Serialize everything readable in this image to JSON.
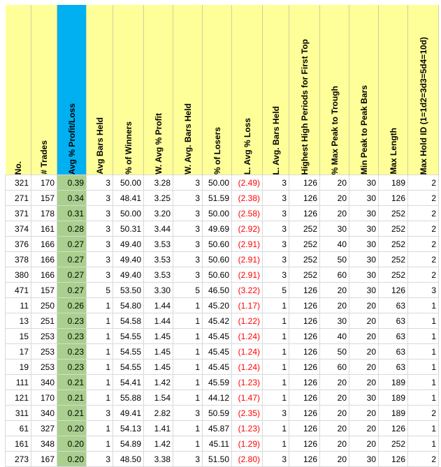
{
  "headers": [
    "No.",
    "# Trades",
    "Avg % Profit/Loss",
    "Avg Bars Held",
    "% of Winners",
    "W. Avg % Profit",
    "W. Avg. Bars Held",
    "% of Losers",
    "L. Avg % Loss",
    "L. Avg. Bars Held",
    "Highest High Periods for First Top",
    "% Max Peak to Trough",
    "Min Peak to Peak Bars",
    "Max Length",
    "Max Hold ID (1=1d2=3d3=5d4=10d)"
  ],
  "rows": [
    [
      "321",
      "170",
      "0.39",
      "3",
      "50.00",
      "3.28",
      "3",
      "50.00",
      "(2.49)",
      "3",
      "126",
      "20",
      "30",
      "189",
      "2"
    ],
    [
      "271",
      "157",
      "0.34",
      "3",
      "48.41",
      "3.25",
      "3",
      "51.59",
      "(2.38)",
      "3",
      "126",
      "20",
      "30",
      "126",
      "2"
    ],
    [
      "371",
      "178",
      "0.31",
      "3",
      "50.00",
      "3.20",
      "3",
      "50.00",
      "(2.58)",
      "3",
      "126",
      "20",
      "30",
      "252",
      "2"
    ],
    [
      "374",
      "161",
      "0.28",
      "3",
      "50.31",
      "3.44",
      "3",
      "49.69",
      "(2.92)",
      "3",
      "252",
      "30",
      "30",
      "252",
      "2"
    ],
    [
      "376",
      "166",
      "0.27",
      "3",
      "49.40",
      "3.53",
      "3",
      "50.60",
      "(2.91)",
      "3",
      "252",
      "40",
      "30",
      "252",
      "2"
    ],
    [
      "378",
      "166",
      "0.27",
      "3",
      "49.40",
      "3.53",
      "3",
      "50.60",
      "(2.91)",
      "3",
      "252",
      "50",
      "30",
      "252",
      "2"
    ],
    [
      "380",
      "166",
      "0.27",
      "3",
      "49.40",
      "3.53",
      "3",
      "50.60",
      "(2.91)",
      "3",
      "252",
      "60",
      "30",
      "252",
      "2"
    ],
    [
      "471",
      "157",
      "0.27",
      "5",
      "53.50",
      "3.30",
      "5",
      "46.50",
      "(3.22)",
      "5",
      "126",
      "20",
      "30",
      "126",
      "3"
    ],
    [
      "11",
      "250",
      "0.26",
      "1",
      "54.80",
      "1.44",
      "1",
      "45.20",
      "(1.17)",
      "1",
      "126",
      "20",
      "20",
      "63",
      "1"
    ],
    [
      "13",
      "251",
      "0.23",
      "1",
      "54.58",
      "1.44",
      "1",
      "45.42",
      "(1.22)",
      "1",
      "126",
      "30",
      "20",
      "63",
      "1"
    ],
    [
      "15",
      "253",
      "0.23",
      "1",
      "54.55",
      "1.45",
      "1",
      "45.45",
      "(1.24)",
      "1",
      "126",
      "40",
      "20",
      "63",
      "1"
    ],
    [
      "17",
      "253",
      "0.23",
      "1",
      "54.55",
      "1.45",
      "1",
      "45.45",
      "(1.24)",
      "1",
      "126",
      "50",
      "20",
      "63",
      "1"
    ],
    [
      "19",
      "253",
      "0.23",
      "1",
      "54.55",
      "1.45",
      "1",
      "45.45",
      "(1.24)",
      "1",
      "126",
      "60",
      "20",
      "63",
      "1"
    ],
    [
      "111",
      "340",
      "0.21",
      "1",
      "54.41",
      "1.42",
      "1",
      "45.59",
      "(1.23)",
      "1",
      "126",
      "20",
      "20",
      "189",
      "1"
    ],
    [
      "121",
      "170",
      "0.21",
      "1",
      "55.88",
      "1.54",
      "1",
      "44.12",
      "(1.47)",
      "1",
      "126",
      "20",
      "30",
      "189",
      "1"
    ],
    [
      "311",
      "340",
      "0.21",
      "3",
      "49.41",
      "2.82",
      "3",
      "50.59",
      "(2.35)",
      "3",
      "126",
      "20",
      "20",
      "189",
      "2"
    ],
    [
      "61",
      "327",
      "0.20",
      "1",
      "54.13",
      "1.41",
      "1",
      "45.87",
      "(1.23)",
      "1",
      "126",
      "20",
      "20",
      "126",
      "1"
    ],
    [
      "161",
      "348",
      "0.20",
      "1",
      "54.89",
      "1.42",
      "1",
      "45.11",
      "(1.29)",
      "1",
      "126",
      "20",
      "20",
      "252",
      "1"
    ],
    [
      "273",
      "167",
      "0.20",
      "3",
      "48.50",
      "3.38",
      "3",
      "51.50",
      "(2.80)",
      "3",
      "126",
      "20",
      "30",
      "126",
      "2"
    ]
  ],
  "colors": {
    "header_bg": "#ffff99",
    "highlight_header_bg": "#00b0f0",
    "highlight_column_bg": "#a9d08e",
    "negative_text": "#ff0000"
  }
}
